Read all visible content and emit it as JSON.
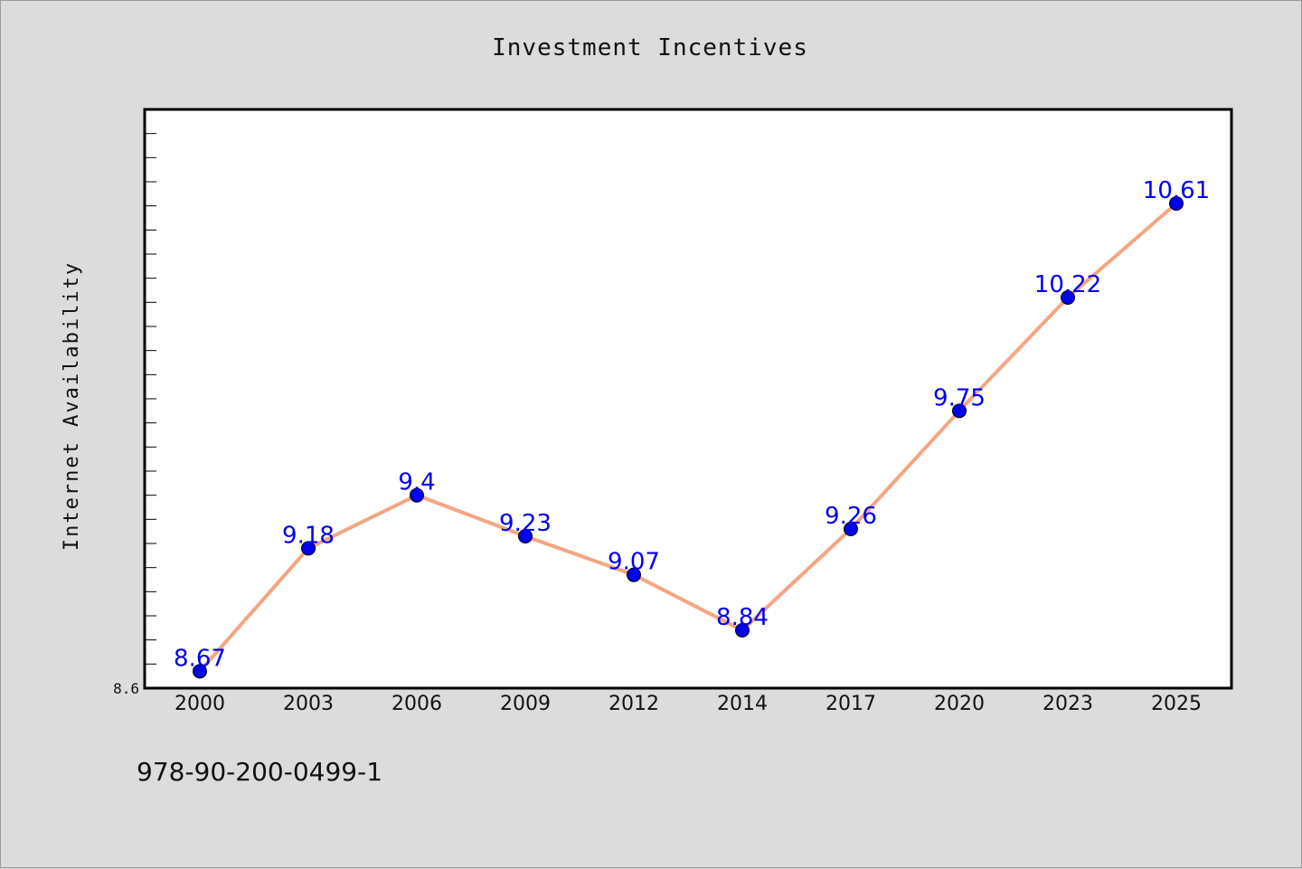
{
  "chart_data": {
    "type": "line",
    "title": "Investment Incentives",
    "xlabel": "",
    "ylabel": "Internet Availability",
    "categories": [
      "2000",
      "2003",
      "2006",
      "2009",
      "2012",
      "2014",
      "2017",
      "2020",
      "2023",
      "2025"
    ],
    "series": [
      {
        "values": [
          8.67,
          9.18,
          9.4,
          9.23,
          9.07,
          8.84,
          9.26,
          9.75,
          10.22,
          10.61
        ],
        "data_labels": [
          "8.67",
          "9.18",
          "9.4",
          "9.23",
          "9.07",
          "8.84",
          "9.26",
          "9.75",
          "10.22",
          "10.61"
        ]
      }
    ],
    "ylim": [
      8.6,
      11.0
    ],
    "ytick_labels": [
      "8.6"
    ],
    "grid": false,
    "legend": "none"
  },
  "footer": {
    "isbn": "978-90-200-0499-1"
  },
  "colors": {
    "background": "#dcdcdc",
    "plot_background": "#ffffff",
    "line": "#f4a582",
    "marker": "#0000ee",
    "data_label": "#0000ee"
  }
}
